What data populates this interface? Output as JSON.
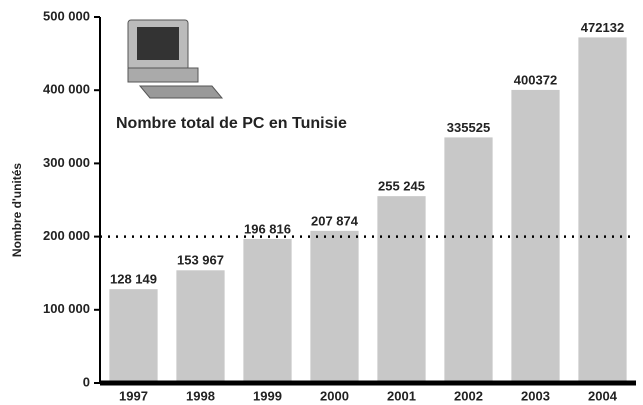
{
  "chart_data": {
    "type": "bar",
    "title": "Nombre total de PC en Tunisie",
    "y_label": "Nombre d'unités",
    "categories": [
      "1997",
      "1998",
      "1999",
      "2000",
      "2001",
      "2002",
      "2003",
      "2004"
    ],
    "values": [
      128149,
      153967,
      196816,
      207874,
      255245,
      335525,
      400372,
      472132
    ],
    "value_labels": [
      "128 149",
      "153 967",
      "196 816",
      "207 874",
      "255 245",
      "335525",
      "400372",
      "472132"
    ],
    "color": "#c8c8c8",
    "ylim": [
      0,
      500000
    ],
    "yticks": [
      0,
      {
        "value": 100000,
        "label": "100 000"
      },
      {
        "value": 200000,
        "label": "200 000"
      },
      {
        "value": 300000,
        "label": "300 000"
      },
      {
        "value": 400000,
        "label": "400 000"
      },
      {
        "value": 500000,
        "label": "500 000"
      }
    ],
    "reference_line": 200000
  }
}
